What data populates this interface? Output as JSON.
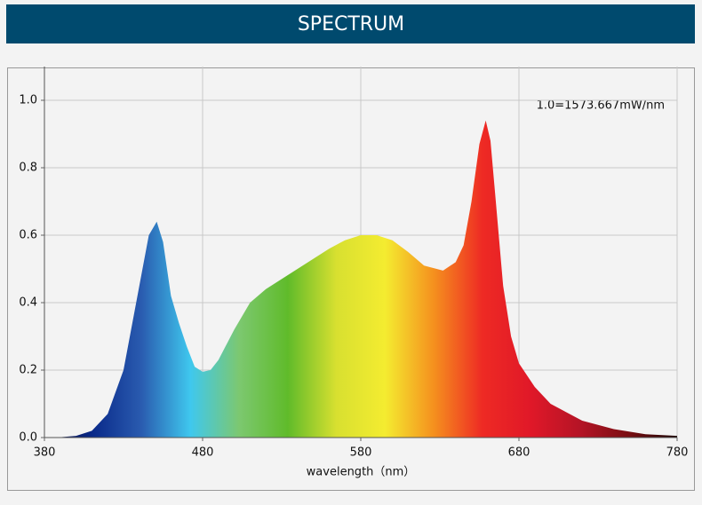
{
  "header": {
    "title": "SPECTRUM"
  },
  "chart_data": {
    "type": "area",
    "annotation": "1.0=1573.667mW/nm",
    "xlabel": "wavelength（nm）",
    "x": [
      380,
      390,
      400,
      410,
      420,
      430,
      440,
      446,
      451,
      455,
      460,
      465,
      470,
      475,
      480,
      485,
      490,
      500,
      510,
      520,
      530,
      540,
      550,
      560,
      570,
      580,
      590,
      600,
      610,
      620,
      632,
      640,
      645,
      650,
      655,
      659,
      662,
      665,
      670,
      675,
      680,
      690,
      700,
      720,
      740,
      760,
      780
    ],
    "values": [
      0,
      0.001,
      0.005,
      0.02,
      0.07,
      0.2,
      0.45,
      0.6,
      0.64,
      0.58,
      0.42,
      0.34,
      0.27,
      0.21,
      0.195,
      0.2,
      0.23,
      0.32,
      0.4,
      0.44,
      0.47,
      0.5,
      0.53,
      0.56,
      0.585,
      0.6,
      0.6,
      0.585,
      0.55,
      0.51,
      0.495,
      0.52,
      0.57,
      0.7,
      0.87,
      0.94,
      0.88,
      0.72,
      0.45,
      0.3,
      0.22,
      0.15,
      0.1,
      0.05,
      0.025,
      0.01,
      0.005
    ],
    "colors": [
      "#0a0a3a",
      "#0a2a8a",
      "#2a5cb0",
      "#3fc8ee",
      "#7cc870",
      "#60bb2a",
      "#d8e030",
      "#f4ec30",
      "#f5901e",
      "#ee2a24",
      "#e01828",
      "#b51426",
      "#7a0e12",
      "#1a0404"
    ],
    "xlim": [
      380,
      780
    ],
    "xticks": [
      380,
      480,
      580,
      680,
      780
    ],
    "ylim": [
      0,
      1.1
    ],
    "yticks": [
      {
        "value": 0,
        "label": "0.0"
      },
      0.2,
      0.4,
      0.6,
      0.8,
      {
        "value": 1,
        "label": "1.0"
      }
    ],
    "grid": true
  }
}
